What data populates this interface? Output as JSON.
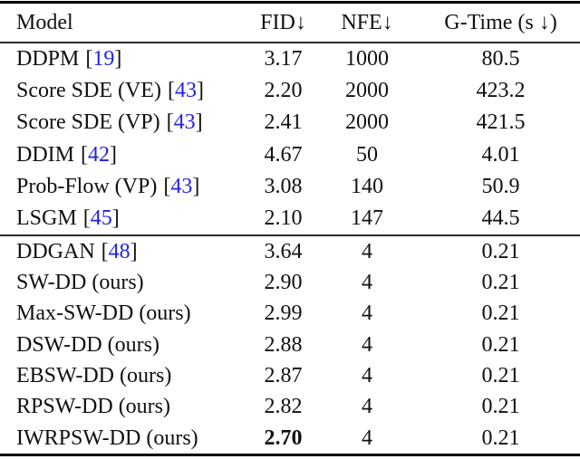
{
  "page": {
    "background_color": "#ffffff",
    "text_color": "#111111",
    "citation_color": "#2222ee"
  },
  "table": {
    "bracket_open": "[",
    "bracket_close": "]",
    "header": {
      "model": "Model",
      "fid": "FID↓",
      "nfe": "NFE↓",
      "gtime": "G-Time (s ↓)"
    },
    "group1": [
      {
        "name": "DDPM",
        "cite": "19",
        "fid": "3.17",
        "nfe": "1000",
        "gtime": "80.5"
      },
      {
        "name": "Score SDE (VE)",
        "cite": "43",
        "fid": "2.20",
        "nfe": "2000",
        "gtime": "423.2"
      },
      {
        "name": "Score SDE (VP)",
        "cite": "43",
        "fid": "2.41",
        "nfe": "2000",
        "gtime": "421.5"
      },
      {
        "name": "DDIM",
        "cite": "42",
        "fid": "4.67",
        "nfe": "50",
        "gtime": "4.01"
      },
      {
        "name": "Prob-Flow (VP)",
        "cite": "43",
        "fid": "3.08",
        "nfe": "140",
        "gtime": "50.9"
      },
      {
        "name": "LSGM",
        "cite": "45",
        "fid": "2.10",
        "nfe": "147",
        "gtime": "44.5"
      }
    ],
    "group2": [
      {
        "name": "DDGAN",
        "cite": "48",
        "fid": "3.64",
        "nfe": "4",
        "gtime": "0.21"
      },
      {
        "name": "SW-DD (ours)",
        "fid": "2.90",
        "nfe": "4",
        "gtime": "0.21"
      },
      {
        "name": "Max-SW-DD (ours)",
        "fid": "2.99",
        "nfe": "4",
        "gtime": "0.21"
      },
      {
        "name": "DSW-DD (ours)",
        "fid": "2.88",
        "nfe": "4",
        "gtime": "0.21"
      },
      {
        "name": "EBSW-DD (ours)",
        "fid": "2.87",
        "nfe": "4",
        "gtime": "0.21"
      },
      {
        "name": "RPSW-DD (ours)",
        "fid": "2.82",
        "nfe": "4",
        "gtime": "0.21"
      },
      {
        "name": "IWRPSW-DD (ours)",
        "fid": "2.70",
        "fid_bold": true,
        "nfe": "4",
        "gtime": "0.21"
      }
    ]
  }
}
